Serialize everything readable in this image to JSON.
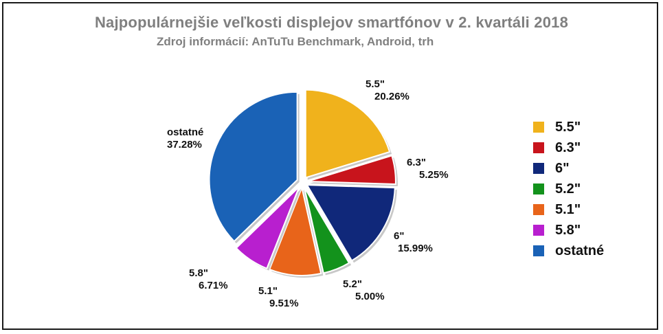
{
  "chart_data": {
    "type": "pie",
    "title": "Najpopulárnejšie veľkosti displejov smartfónov v 2. kvartáli 2018",
    "subtitle": "Zdroj informácií: AnTuTu Benchmark, Android, trh",
    "legend_position": "right",
    "slices": [
      {
        "label": "5.5\"",
        "value": 20.26,
        "value_label": "20.26%",
        "color": "#f0b21c"
      },
      {
        "label": "6.3\"",
        "value": 5.25,
        "value_label": "5.25%",
        "color": "#c8141c"
      },
      {
        "label": "6\"",
        "value": 15.99,
        "value_label": "15.99%",
        "color": "#10287a"
      },
      {
        "label": "5.2\"",
        "value": 5.0,
        "value_label": "5.00%",
        "color": "#13921c"
      },
      {
        "label": "5.1\"",
        "value": 9.51,
        "value_label": "9.51%",
        "color": "#e8641a"
      },
      {
        "label": "5.8\"",
        "value": 6.71,
        "value_label": "6.71%",
        "color": "#b81fcf"
      },
      {
        "label": "ostatné",
        "value": 37.28,
        "value_label": "37.28%",
        "color": "#1a62b6"
      }
    ]
  }
}
